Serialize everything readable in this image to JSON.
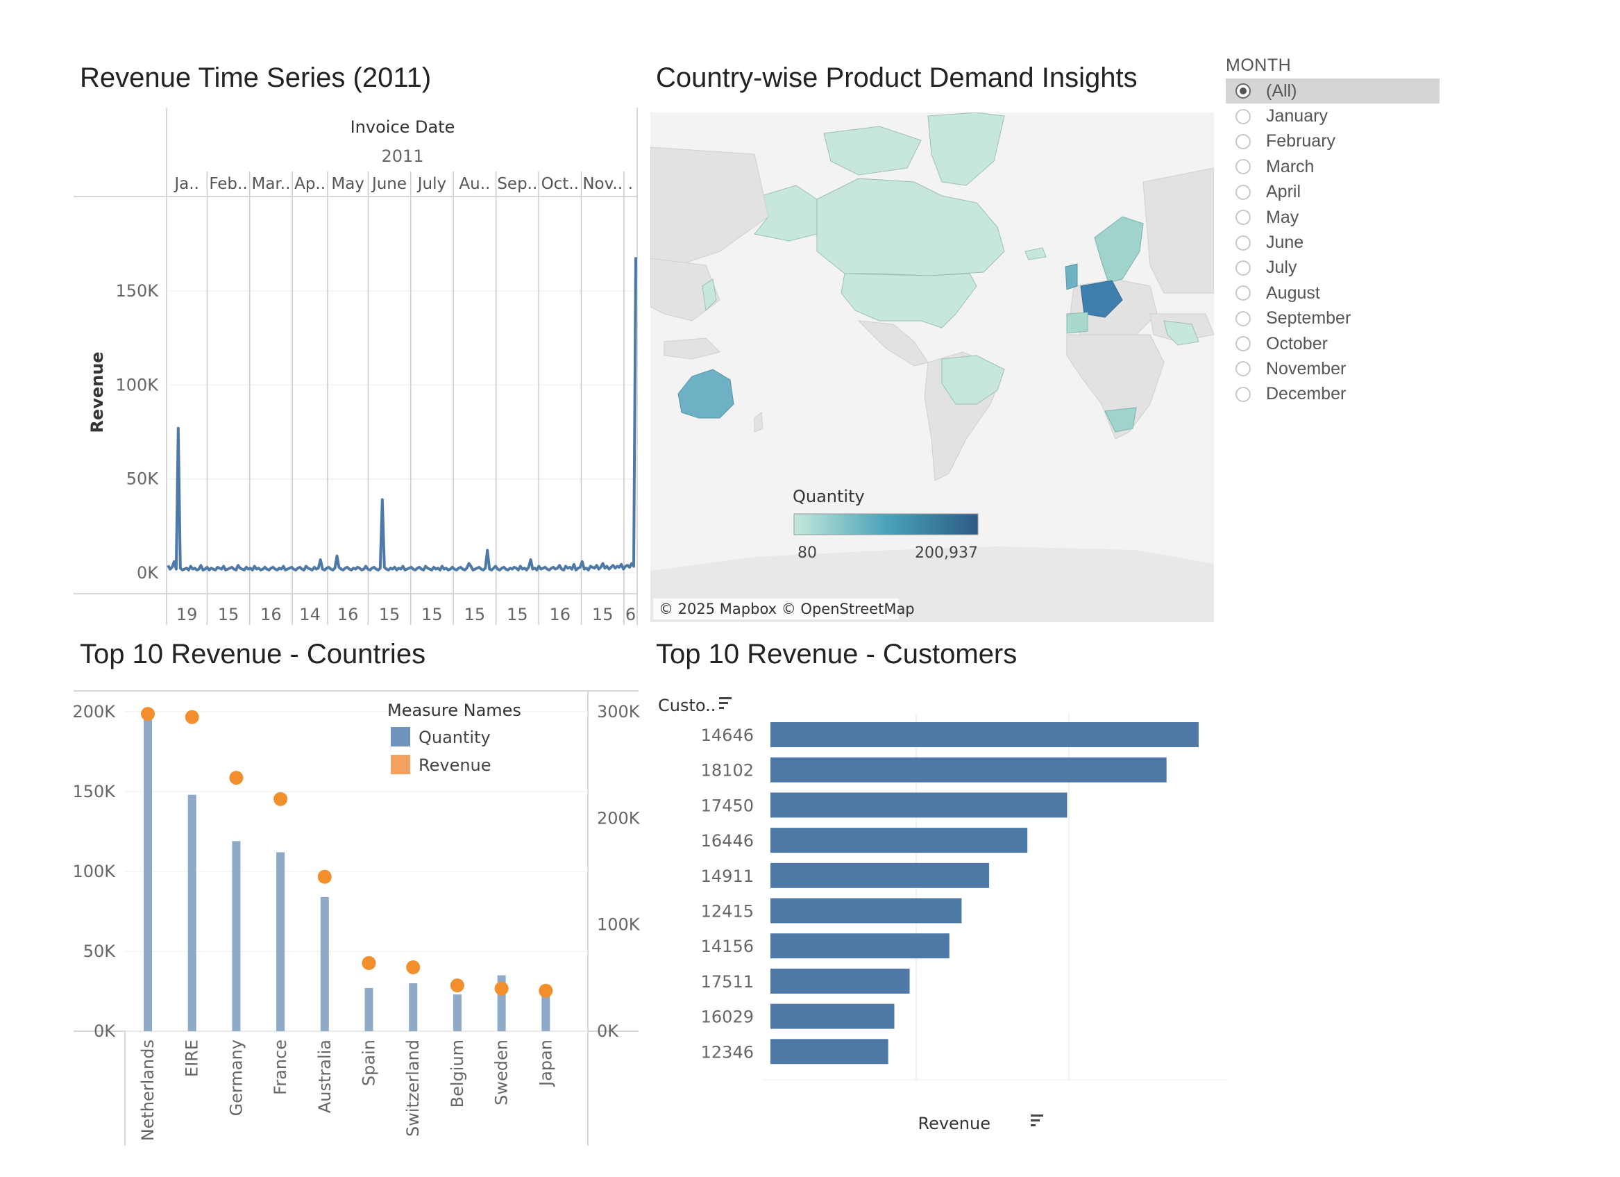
{
  "titles": {
    "revenue_series": "Revenue Time Series (2011)",
    "country_map": "Country-wise Product Demand Insights",
    "top_countries": "Top 10 Revenue - Countries",
    "top_customers": "Top 10 Revenue - Customers"
  },
  "filter": {
    "title": "MONTH",
    "selected_index": 0,
    "options": [
      "(All)",
      "January",
      "February",
      "March",
      "April",
      "May",
      "June",
      "July",
      "August",
      "September",
      "October",
      "November",
      "December"
    ]
  },
  "map": {
    "legend_title": "Quantity",
    "legend_min": "80",
    "legend_max": "200,937",
    "color_low": "#c4e8dc",
    "color_high": "#2d5b86",
    "attribution": "© 2025 Mapbox © OpenStreetMap"
  },
  "chart_data": [
    {
      "type": "line",
      "title": "Revenue Time Series (2011)",
      "header_label": "Invoice Date",
      "year_label": "2011",
      "ylabel": "Revenue",
      "ylim": [
        0,
        170000
      ],
      "yticks": [
        "0K",
        "50K",
        "100K",
        "150K"
      ],
      "months": [
        "Ja..",
        "Feb..",
        "Mar..",
        "Ap..",
        "May",
        "June",
        "July",
        "Au..",
        "Sep..",
        "Oct..",
        "Nov..",
        "."
      ],
      "bottom_labels": [
        "19",
        "15",
        "16",
        "14",
        "16",
        "15",
        "15",
        "15",
        "15",
        "16",
        "15",
        "6"
      ],
      "color": "#4e79a7",
      "series": [
        {
          "values": [
            4000,
            2000,
            3000,
            6000,
            2000,
            77000,
            2500,
            1500,
            2000,
            2500,
            1500,
            3500,
            2000,
            2500,
            1500,
            2000,
            4000,
            1500,
            2000,
            3000,
            1500,
            2500,
            2000,
            1500,
            3000,
            2500,
            2000,
            3500,
            1500,
            2000,
            2500,
            3000,
            2000,
            1500,
            4000,
            2500,
            2000,
            1500,
            3000,
            2000,
            2500,
            1500,
            3500,
            2000,
            2500,
            1500,
            2000,
            3000,
            2000,
            1500,
            2500,
            3000,
            2000,
            1500,
            2500,
            2000,
            3500,
            1500,
            2000,
            2500,
            3000,
            2000,
            1500,
            2500,
            3000,
            2000,
            1500,
            3500,
            2500,
            2000,
            1500,
            3000,
            2000,
            2500,
            7000,
            2000,
            1500,
            2500,
            3000,
            2000,
            1500,
            2500,
            9000,
            3000,
            2000,
            1500,
            2500,
            3000,
            2000,
            1500,
            2500,
            2000,
            3000,
            2500,
            1500,
            2000,
            3500,
            2000,
            1500,
            2500,
            3000,
            2000,
            1500,
            2500,
            39000,
            3000,
            2000,
            1500,
            2500,
            2000,
            3000,
            1500,
            2500,
            2000,
            3500,
            1500,
            2000,
            2500,
            3000,
            2000,
            1500,
            2500,
            3000,
            2000,
            1500,
            3500,
            2500,
            2000,
            1500,
            3000,
            2000,
            2500,
            1500,
            3500,
            2000,
            2500,
            1500,
            2000,
            3000,
            2000,
            1500,
            2500,
            3000,
            2000,
            1500,
            2500,
            5000,
            3500,
            1500,
            2000,
            2500,
            3000,
            2000,
            1500,
            2500,
            12000,
            2000,
            1500,
            2500,
            3500,
            2000,
            1500,
            2500,
            3000,
            2000,
            1500,
            2500,
            2000,
            3000,
            2500,
            1500,
            3500,
            2000,
            2500,
            1500,
            3000,
            7000,
            2000,
            2500,
            1500,
            3500,
            2000,
            2500,
            3000,
            2000,
            1500,
            2500,
            3000,
            2000,
            2500,
            4000,
            2000,
            1500,
            3500,
            2500,
            3000,
            2000,
            4500,
            1500,
            2500,
            3000,
            6000,
            2000,
            2500,
            1500,
            3500,
            3000,
            2500,
            4000,
            2000,
            3000,
            5000,
            2500,
            3500,
            2000,
            3000,
            4000,
            2500,
            3500,
            3000,
            4500,
            2000,
            3500,
            4000,
            3000,
            5000,
            3500,
            168000
          ]
        }
      ]
    },
    {
      "type": "bar",
      "title": "Top 10 Revenue - Countries",
      "categories": [
        "Netherlands",
        "EIRE",
        "Germany",
        "France",
        "Australia",
        "Spain",
        "Switzerland",
        "Belgium",
        "Sweden",
        "Japan"
      ],
      "legend_title": "Measure Names",
      "legend_position": "top-right",
      "series": [
        {
          "name": "Quantity",
          "axis": "left",
          "color": "#8fa9c8",
          "values": [
            200000,
            148000,
            119000,
            112000,
            84000,
            27000,
            30000,
            23000,
            35000,
            26000
          ]
        },
        {
          "name": "Revenue",
          "axis": "right",
          "color": "#f28e2b",
          "values": [
            298000,
            295000,
            238000,
            218000,
            145000,
            64000,
            60000,
            43000,
            40000,
            38000
          ]
        }
      ],
      "ylim_left": [
        0,
        200000
      ],
      "ylim_right": [
        0,
        300000
      ],
      "yticks_left": [
        "0K",
        "50K",
        "100K",
        "150K",
        "200K"
      ],
      "yticks_right": [
        "0K",
        "100K",
        "200K",
        "300K"
      ]
    },
    {
      "type": "bar",
      "orientation": "horizontal",
      "title": "Top 10 Revenue - Customers",
      "row_header": "Custo..",
      "xlabel": "Revenue",
      "categories": [
        "14646",
        "18102",
        "17450",
        "16446",
        "14911",
        "12415",
        "14156",
        "17511",
        "16029",
        "12346"
      ],
      "values": [
        280000,
        259000,
        194000,
        168000,
        143000,
        125000,
        117000,
        91000,
        81000,
        77000
      ],
      "xlim": [
        0,
        295000
      ],
      "color": "#4e79a7"
    }
  ]
}
